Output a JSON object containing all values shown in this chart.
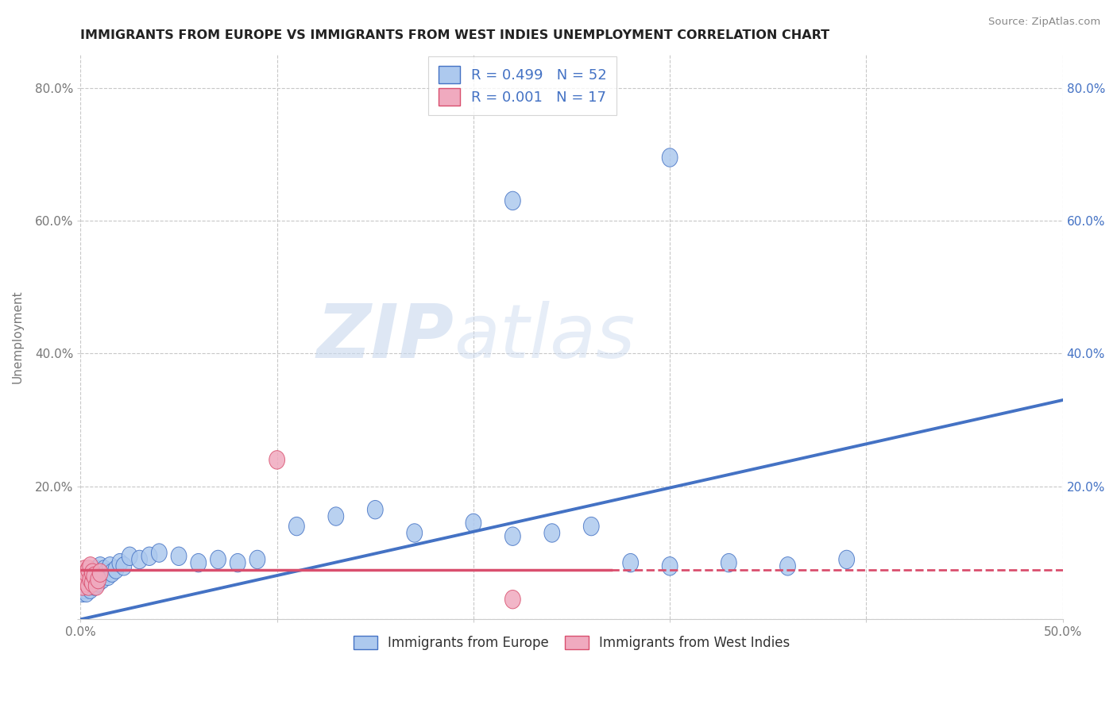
{
  "title": "IMMIGRANTS FROM EUROPE VS IMMIGRANTS FROM WEST INDIES UNEMPLOYMENT CORRELATION CHART",
  "source": "Source: ZipAtlas.com",
  "xlabel": "",
  "ylabel": "Unemployment",
  "xlim": [
    0.0,
    0.5
  ],
  "ylim": [
    0.0,
    0.85
  ],
  "xticks": [
    0.0,
    0.1,
    0.2,
    0.3,
    0.4,
    0.5
  ],
  "xticklabels": [
    "0.0%",
    "",
    "",
    "",
    "",
    "50.0%"
  ],
  "yticks": [
    0.0,
    0.2,
    0.4,
    0.6,
    0.8
  ],
  "yticklabels": [
    "",
    "20.0%",
    "40.0%",
    "60.0%",
    "80.0%"
  ],
  "legend_r1": "R = 0.499",
  "legend_n1": "N = 52",
  "legend_r2": "R = 0.001",
  "legend_n2": "N = 17",
  "color_europe": "#adc9ee",
  "color_wi": "#f0aabf",
  "color_europe_line": "#4472c4",
  "color_wi_line": "#d94f6e",
  "color_legend_text": "#4472c4",
  "watermark_zip": "ZIP",
  "watermark_atlas": "atlas",
  "background_color": "#ffffff",
  "grid_color": "#c8c8c8",
  "europe_x": [
    0.001,
    0.002,
    0.002,
    0.003,
    0.003,
    0.004,
    0.004,
    0.005,
    0.005,
    0.006,
    0.006,
    0.007,
    0.007,
    0.008,
    0.008,
    0.009,
    0.009,
    0.01,
    0.01,
    0.011,
    0.012,
    0.013,
    0.014,
    0.015,
    0.016,
    0.018,
    0.02,
    0.022,
    0.025,
    0.03,
    0.035,
    0.04,
    0.05,
    0.06,
    0.07,
    0.08,
    0.09,
    0.11,
    0.13,
    0.15,
    0.17,
    0.2,
    0.22,
    0.24,
    0.26,
    0.28,
    0.3,
    0.33,
    0.36,
    0.39,
    0.22,
    0.3
  ],
  "europe_y": [
    0.04,
    0.045,
    0.06,
    0.04,
    0.055,
    0.05,
    0.065,
    0.045,
    0.06,
    0.055,
    0.07,
    0.05,
    0.065,
    0.06,
    0.075,
    0.055,
    0.07,
    0.065,
    0.08,
    0.06,
    0.075,
    0.07,
    0.065,
    0.08,
    0.07,
    0.075,
    0.085,
    0.08,
    0.095,
    0.09,
    0.095,
    0.1,
    0.095,
    0.085,
    0.09,
    0.085,
    0.09,
    0.14,
    0.155,
    0.165,
    0.13,
    0.145,
    0.125,
    0.13,
    0.14,
    0.085,
    0.08,
    0.085,
    0.08,
    0.09,
    0.63,
    0.695
  ],
  "wi_x": [
    0.001,
    0.002,
    0.002,
    0.003,
    0.003,
    0.004,
    0.004,
    0.005,
    0.005,
    0.006,
    0.006,
    0.007,
    0.008,
    0.009,
    0.01,
    0.1,
    0.22
  ],
  "wi_y": [
    0.05,
    0.06,
    0.075,
    0.055,
    0.07,
    0.05,
    0.075,
    0.06,
    0.08,
    0.055,
    0.07,
    0.065,
    0.05,
    0.06,
    0.07,
    0.24,
    0.03
  ],
  "eu_line_x0": 0.0,
  "eu_line_x1": 0.5,
  "eu_line_y0": 0.0,
  "eu_line_y1": 0.33,
  "wi_line_y": 0.075
}
